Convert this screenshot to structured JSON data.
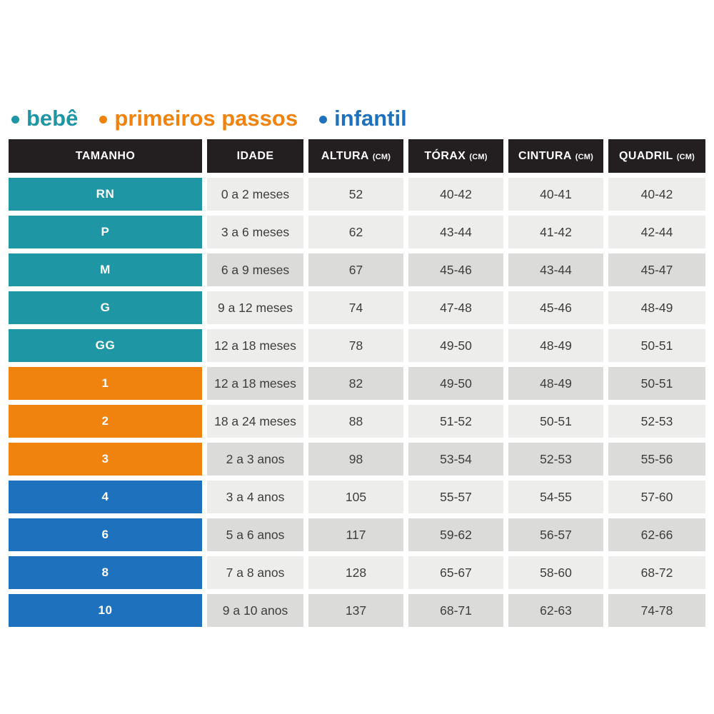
{
  "legend": {
    "items": [
      {
        "label": "bebê",
        "group": "bebe",
        "color": "#1e96a3"
      },
      {
        "label": "primeiros passos",
        "group": "primeiros_passos",
        "color": "#f0820e"
      },
      {
        "label": "infantil",
        "group": "infantil",
        "color": "#1e72bd"
      }
    ]
  },
  "table": {
    "columns": [
      {
        "label": "TAMANHO",
        "unit": ""
      },
      {
        "label": "IDADE",
        "unit": ""
      },
      {
        "label": "ALTURA",
        "unit": "(CM)"
      },
      {
        "label": "TÓRAX",
        "unit": "(CM)"
      },
      {
        "label": "CINTURA",
        "unit": "(CM)"
      },
      {
        "label": "QUADRIL",
        "unit": "(CM)"
      }
    ],
    "rows": [
      {
        "size": "RN",
        "group": "bebe",
        "shade": "light",
        "cells": [
          "0 a 2 meses",
          "52",
          "40-42",
          "40-41",
          "40-42"
        ]
      },
      {
        "size": "P",
        "group": "bebe",
        "shade": "light",
        "cells": [
          "3 a 6 meses",
          "62",
          "43-44",
          "41-42",
          "42-44"
        ]
      },
      {
        "size": "M",
        "group": "bebe",
        "shade": "dark",
        "cells": [
          "6 a 9 meses",
          "67",
          "45-46",
          "43-44",
          "45-47"
        ]
      },
      {
        "size": "G",
        "group": "bebe",
        "shade": "light",
        "cells": [
          "9 a 12 meses",
          "74",
          "47-48",
          "45-46",
          "48-49"
        ]
      },
      {
        "size": "GG",
        "group": "bebe",
        "shade": "light",
        "cells": [
          "12 a 18 meses",
          "78",
          "49-50",
          "48-49",
          "50-51"
        ]
      },
      {
        "size": "1",
        "group": "primeiros_passos",
        "shade": "dark",
        "cells": [
          "12 a 18 meses",
          "82",
          "49-50",
          "48-49",
          "50-51"
        ]
      },
      {
        "size": "2",
        "group": "primeiros_passos",
        "shade": "light",
        "cells": [
          "18 a 24 meses",
          "88",
          "51-52",
          "50-51",
          "52-53"
        ]
      },
      {
        "size": "3",
        "group": "primeiros_passos",
        "shade": "dark",
        "cells": [
          "2 a 3 anos",
          "98",
          "53-54",
          "52-53",
          "55-56"
        ]
      },
      {
        "size": "4",
        "group": "infantil",
        "shade": "light",
        "cells": [
          "3 a 4 anos",
          "105",
          "55-57",
          "54-55",
          "57-60"
        ]
      },
      {
        "size": "6",
        "group": "infantil",
        "shade": "dark",
        "cells": [
          "5 a 6 anos",
          "117",
          "59-62",
          "56-57",
          "62-66"
        ]
      },
      {
        "size": "8",
        "group": "infantil",
        "shade": "light",
        "cells": [
          "7 a 8 anos",
          "128",
          "65-67",
          "58-60",
          "68-72"
        ]
      },
      {
        "size": "10",
        "group": "infantil",
        "shade": "dark",
        "cells": [
          "9 a 10 anos",
          "137",
          "68-71",
          "62-63",
          "74-78"
        ]
      }
    ]
  },
  "colors": {
    "header_bg": "#231f20",
    "bebe": "#1e96a3",
    "primeiros_passos": "#f0820e",
    "infantil": "#1e72bd",
    "cell_light": "#ededec",
    "cell_dark": "#dbdbda",
    "cell_text": "#3d3d3d",
    "header_text": "#ffffff"
  },
  "chart_data": {
    "type": "table",
    "title": "",
    "legend": [
      "bebê",
      "primeiros passos",
      "infantil"
    ],
    "legend_colors": [
      "#1e96a3",
      "#f0820e",
      "#1e72bd"
    ],
    "columns": [
      "TAMANHO",
      "IDADE",
      "ALTURA (CM)",
      "TÓRAX (CM)",
      "CINTURA (CM)",
      "QUADRIL (CM)"
    ],
    "rows": [
      [
        "RN",
        "0 a 2 meses",
        "52",
        "40-42",
        "40-41",
        "40-42"
      ],
      [
        "P",
        "3 a 6 meses",
        "62",
        "43-44",
        "41-42",
        "42-44"
      ],
      [
        "M",
        "6 a 9 meses",
        "67",
        "45-46",
        "43-44",
        "45-47"
      ],
      [
        "G",
        "9 a 12 meses",
        "74",
        "47-48",
        "45-46",
        "48-49"
      ],
      [
        "GG",
        "12 a 18 meses",
        "78",
        "49-50",
        "48-49",
        "50-51"
      ],
      [
        "1",
        "12 a 18 meses",
        "82",
        "49-50",
        "48-49",
        "50-51"
      ],
      [
        "2",
        "18 a 24 meses",
        "88",
        "51-52",
        "50-51",
        "52-53"
      ],
      [
        "3",
        "2 a 3 anos",
        "98",
        "53-54",
        "52-53",
        "55-56"
      ],
      [
        "4",
        "3 a 4 anos",
        "105",
        "55-57",
        "54-55",
        "57-60"
      ],
      [
        "6",
        "5 a 6 anos",
        "117",
        "59-62",
        "56-57",
        "62-66"
      ],
      [
        "8",
        "7 a 8 anos",
        "128",
        "65-67",
        "58-60",
        "68-72"
      ],
      [
        "10",
        "9 a 10 anos",
        "137",
        "68-71",
        "62-63",
        "74-78"
      ]
    ],
    "row_groups": [
      "bebê",
      "bebê",
      "bebê",
      "bebê",
      "bebê",
      "primeiros passos",
      "primeiros passos",
      "primeiros passos",
      "infantil",
      "infantil",
      "infantil",
      "infantil"
    ]
  }
}
